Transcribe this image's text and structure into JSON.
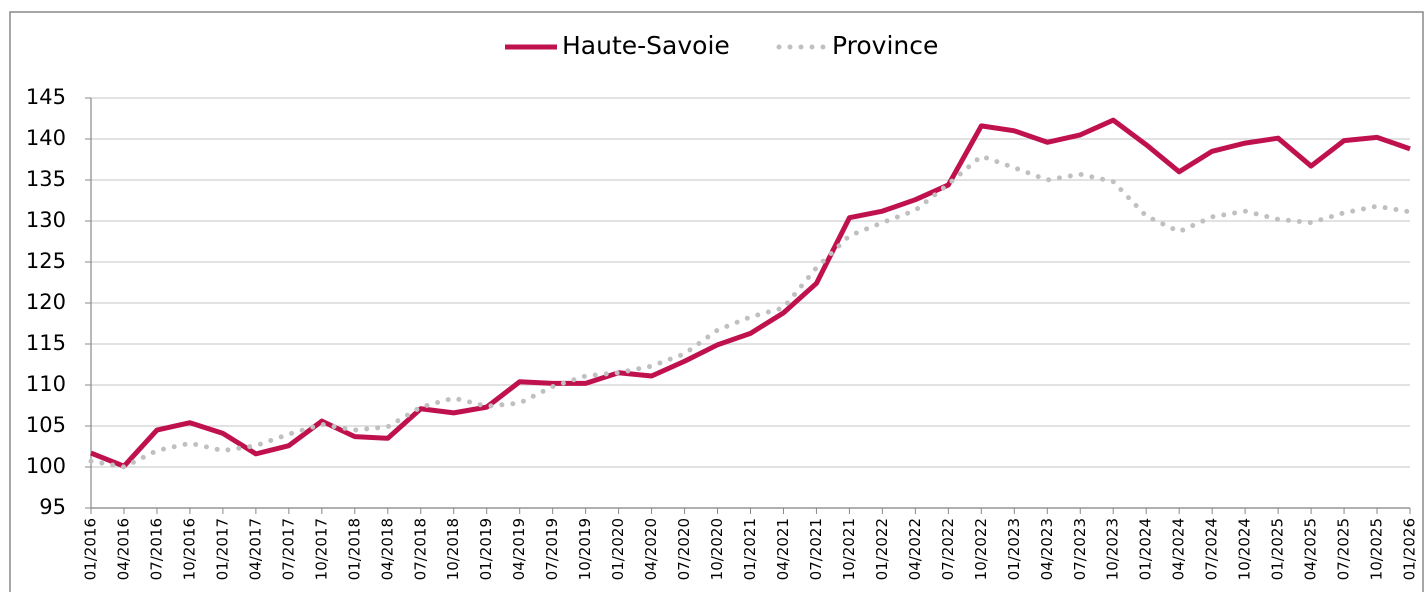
{
  "chart_data": {
    "type": "line",
    "categories": [
      "01/2016",
      "04/2016",
      "07/2016",
      "10/2016",
      "01/2017",
      "04/2017",
      "07/2017",
      "10/2017",
      "01/2018",
      "04/2018",
      "07/2018",
      "10/2018",
      "01/2019",
      "04/2019",
      "07/2019",
      "10/2019",
      "01/2020",
      "04/2020",
      "07/2020",
      "10/2020",
      "01/2021",
      "04/2021",
      "07/2021",
      "10/2021",
      "01/2022",
      "04/2022",
      "07/2022",
      "10/2022",
      "01/2023",
      "04/2023",
      "07/2023",
      "10/2023",
      "01/2024",
      "04/2024",
      "07/2024",
      "10/2024",
      "01/2025",
      "04/2025",
      "07/2025",
      "10/2025",
      "01/2026"
    ],
    "series": [
      {
        "name": "Haute-Savoie",
        "color": "#c0114f",
        "style": "solid",
        "values": [
          101.7,
          100.1,
          104.5,
          105.4,
          104.1,
          101.6,
          102.6,
          105.6,
          103.7,
          103.5,
          107.1,
          106.6,
          107.3,
          110.4,
          110.2,
          110.2,
          111.5,
          111.1,
          112.9,
          114.9,
          116.3,
          118.8,
          122.4,
          130.4,
          131.2,
          132.6,
          134.4,
          141.6,
          141.0,
          139.6,
          140.5,
          142.3,
          139.3,
          136.0,
          138.5,
          139.5,
          140.1,
          136.7,
          139.8,
          140.2,
          138.8
        ]
      },
      {
        "name": "Province",
        "color": "#c0c0c0",
        "style": "dotted",
        "values": [
          100.7,
          100.0,
          102.0,
          102.9,
          102.0,
          102.6,
          104.0,
          105.2,
          104.5,
          104.9,
          107.3,
          108.4,
          107.4,
          107.8,
          109.8,
          111.1,
          111.5,
          112.3,
          113.8,
          116.7,
          118.3,
          119.4,
          124.3,
          128.2,
          129.8,
          131.3,
          134.5,
          137.9,
          136.5,
          135.0,
          135.7,
          134.8,
          130.6,
          128.7,
          130.5,
          131.2,
          130.2,
          129.8,
          131.0,
          131.8,
          131.1
        ]
      }
    ],
    "ylim": [
      95,
      145
    ],
    "yticks": [
      95,
      100,
      105,
      110,
      115,
      120,
      125,
      130,
      135,
      140,
      145
    ],
    "grid": true,
    "legend": "top"
  }
}
